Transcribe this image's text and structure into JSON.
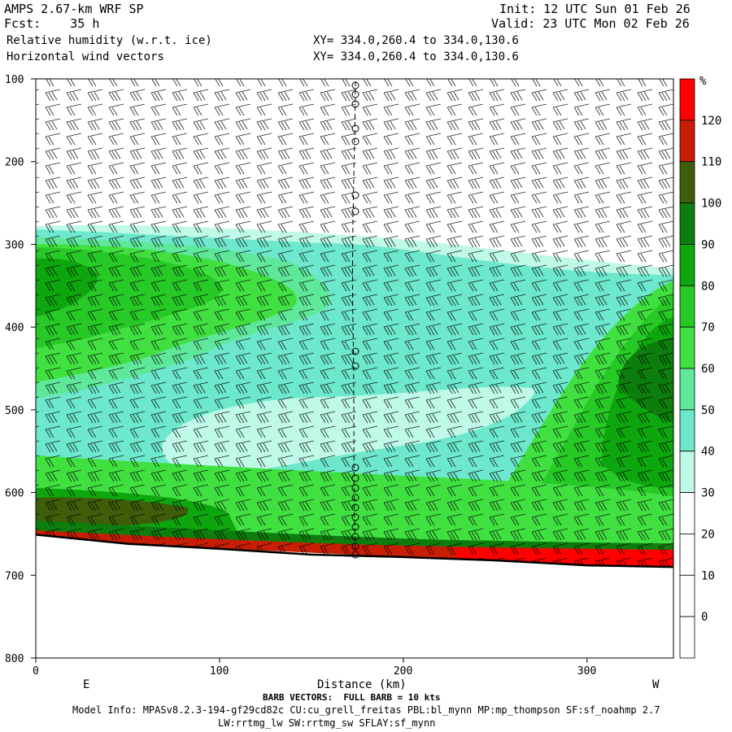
{
  "header": {
    "model": "AMPS 2.67-km WRF SP",
    "init": "Init: 12 UTC Sun 01 Feb 26",
    "fcst_label": "Fcst:",
    "fcst_value": "35 h",
    "valid": "Valid: 23 UTC Mon 02 Feb 26",
    "field1": "Relative humidity (w.r.t. ice)",
    "field2": "Horizontal wind vectors",
    "xy1": "XY= 334.0,260.4 to 334.0,130.6",
    "xy2": "XY= 334.0,260.4 to 334.0,130.6"
  },
  "footer": {
    "barb_note": "BARB VECTORS:  FULL BARB = 10 kts",
    "model_info": "Model Info: MPASv8.2.3-194-gf29cd82c CU:cu_grell_freitas PBL:bl_mynn MP:mp_thompson SF:sf_noahmp 2.7",
    "model_info2": "LW:rrtmg_lw SW:rrtmg_sw SFLAY:sf_mynn"
  },
  "colors": {
    "bands": [
      "#ffffff",
      "#ffffff",
      "#ffffff",
      "#ffffff",
      "#bffae8",
      "#6de8cc",
      "#5fe79a",
      "#41e041",
      "#27c927",
      "#0ea60e",
      "#0d7e0d",
      "#3e5e0a",
      "#c81e05",
      "#ff0000"
    ]
  },
  "chart_data": {
    "type": "heatmap",
    "title": "Relative humidity (w.r.t. ice)",
    "xlabel": "Distance (km)",
    "x_ticks": [
      0,
      100,
      200,
      300
    ],
    "xlim": [
      0,
      347
    ],
    "ylim": [
      100,
      800
    ],
    "y_ticks": [
      100,
      200,
      300,
      400,
      500,
      600,
      700,
      800
    ],
    "y_scale": "linear, inverted (pressure hPa)",
    "x_end_labels": [
      "E",
      "W"
    ],
    "colorbar": {
      "unit": "%",
      "levels": [
        0,
        10,
        20,
        30,
        40,
        50,
        60,
        70,
        80,
        90,
        100,
        110,
        120
      ],
      "interval": 10
    },
    "terrain_pressure_profile": {
      "x": [
        0,
        50,
        100,
        150,
        200,
        250,
        300,
        347
      ],
      "p": [
        651,
        662,
        668,
        675,
        678,
        682,
        688,
        690
      ]
    },
    "rh_regions": [
      {
        "desc": "dry upper layer",
        "p_range": [
          100,
          280
        ],
        "rh": "<30"
      },
      {
        "desc": "moist layer west of 170 km",
        "p_range": [
          300,
          640
        ],
        "rh": "40-80"
      },
      {
        "desc": "dry slot",
        "center_x": 150,
        "center_p": 525,
        "rh": "30-40"
      },
      {
        "desc": "moist ascent region",
        "x_range": [
          230,
          347
        ],
        "p_range": [
          380,
          670
        ],
        "rh": "60-100"
      },
      {
        "desc": "near-surface layer",
        "p_range": [
          630,
          690
        ],
        "rh": "90-120"
      }
    ],
    "barb_note": "FULL BARB = 10 kts"
  }
}
